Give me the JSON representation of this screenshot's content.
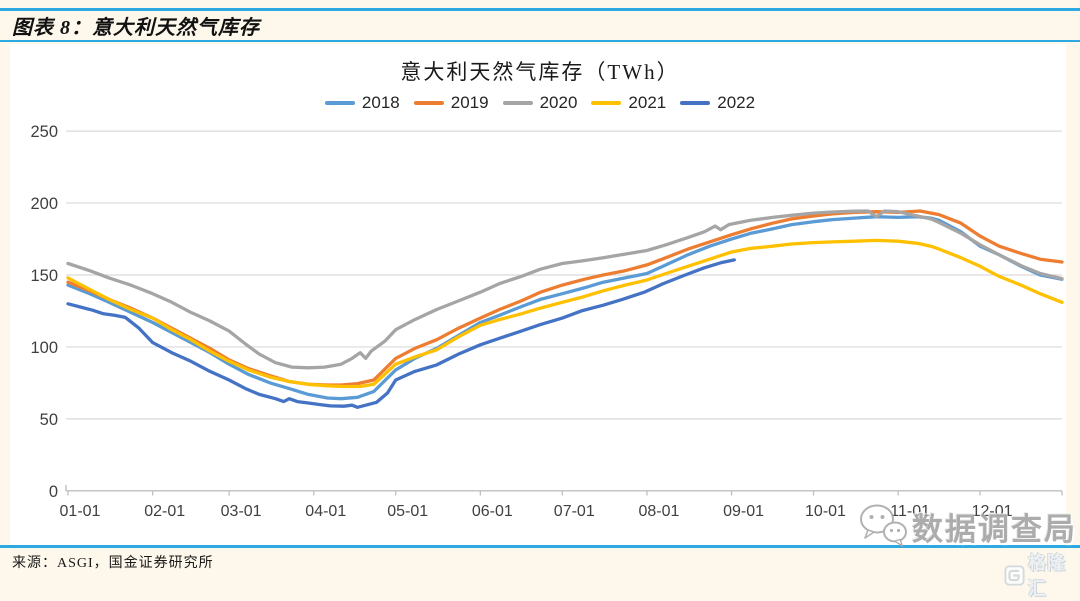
{
  "page": {
    "background": "#FDF8EB",
    "accent_line_color": "#2BA9E0",
    "panel_color": "#FFFFFF"
  },
  "header": {
    "figure_title": "图表 8：意大利天然气库存"
  },
  "chart": {
    "title": "意大利天然气库存（TWh）",
    "legend": [
      {
        "label": "2018",
        "color": "#5B9BD5"
      },
      {
        "label": "2019",
        "color": "#ED7D31"
      },
      {
        "label": "2020",
        "color": "#A5A5A5"
      },
      {
        "label": "2021",
        "color": "#FFC000"
      },
      {
        "label": "2022",
        "color": "#4472C4"
      }
    ],
    "y_axis": {
      "ticks": [
        0,
        50,
        100,
        150,
        200,
        250
      ],
      "color": "#404040"
    },
    "x_axis": {
      "labels": [
        "01-01",
        "02-01",
        "03-01",
        "04-01",
        "05-01",
        "06-01",
        "07-01",
        "08-01",
        "09-01",
        "10-01",
        "11-01",
        "12-01"
      ],
      "label_days": [
        0,
        31,
        59,
        90,
        120,
        151,
        181,
        212,
        243,
        273,
        304,
        334
      ],
      "color": "#404040"
    },
    "grid_color": "#D9D9D9",
    "axis_line_color": "#BFBFBF"
  },
  "chart_data": {
    "type": "line",
    "title": "意大利天然气库存（TWh）",
    "x_unit": "day-of-year (MM-DD axis, 01-01 to 12-31)",
    "ylabel": "TWh",
    "ylim": [
      0,
      250
    ],
    "grid": true,
    "legend_position": "top",
    "series": [
      {
        "name": "2018",
        "color": "#5B9BD5",
        "points": [
          [
            0,
            143
          ],
          [
            8,
            137
          ],
          [
            15,
            131
          ],
          [
            23,
            124
          ],
          [
            31,
            117
          ],
          [
            38,
            110
          ],
          [
            45,
            103
          ],
          [
            52,
            96
          ],
          [
            59,
            88
          ],
          [
            66,
            81
          ],
          [
            74,
            75
          ],
          [
            81,
            71
          ],
          [
            88,
            67
          ],
          [
            95,
            64.5
          ],
          [
            100,
            64
          ],
          [
            106,
            65
          ],
          [
            112,
            69
          ],
          [
            120,
            84
          ],
          [
            127,
            92
          ],
          [
            135,
            99
          ],
          [
            143,
            108
          ],
          [
            151,
            117
          ],
          [
            158,
            122
          ],
          [
            166,
            128
          ],
          [
            173,
            133
          ],
          [
            181,
            137
          ],
          [
            189,
            141
          ],
          [
            196,
            145
          ],
          [
            204,
            148
          ],
          [
            212,
            151
          ],
          [
            219,
            157
          ],
          [
            227,
            164
          ],
          [
            235,
            170
          ],
          [
            243,
            175
          ],
          [
            250,
            179
          ],
          [
            258,
            182
          ],
          [
            265,
            185
          ],
          [
            273,
            187
          ],
          [
            280,
            188.5
          ],
          [
            288,
            189.5
          ],
          [
            296,
            190.5
          ],
          [
            304,
            190
          ],
          [
            311,
            190.5
          ],
          [
            316,
            189.5
          ],
          [
            319,
            188
          ],
          [
            327,
            180
          ],
          [
            334,
            170
          ],
          [
            341,
            164
          ],
          [
            349,
            156
          ],
          [
            356,
            150
          ],
          [
            364,
            147
          ]
        ]
      },
      {
        "name": "2019",
        "color": "#ED7D31",
        "points": [
          [
            0,
            145
          ],
          [
            8,
            139
          ],
          [
            15,
            133
          ],
          [
            23,
            127
          ],
          [
            31,
            120
          ],
          [
            38,
            113
          ],
          [
            45,
            106
          ],
          [
            52,
            99
          ],
          [
            59,
            91
          ],
          [
            66,
            85
          ],
          [
            74,
            80
          ],
          [
            81,
            76
          ],
          [
            88,
            74
          ],
          [
            95,
            73.5
          ],
          [
            100,
            73.5
          ],
          [
            106,
            74.5
          ],
          [
            112,
            77
          ],
          [
            120,
            92
          ],
          [
            127,
            99
          ],
          [
            135,
            105
          ],
          [
            143,
            113
          ],
          [
            151,
            120
          ],
          [
            158,
            126
          ],
          [
            166,
            132
          ],
          [
            173,
            138
          ],
          [
            181,
            143
          ],
          [
            189,
            147
          ],
          [
            196,
            150
          ],
          [
            204,
            153
          ],
          [
            212,
            157
          ],
          [
            219,
            162
          ],
          [
            227,
            168
          ],
          [
            235,
            173
          ],
          [
            243,
            178
          ],
          [
            250,
            182
          ],
          [
            258,
            186
          ],
          [
            265,
            189
          ],
          [
            273,
            191
          ],
          [
            280,
            192.5
          ],
          [
            288,
            193.5
          ],
          [
            296,
            194
          ],
          [
            304,
            193.5
          ],
          [
            312,
            194.5
          ],
          [
            319,
            192
          ],
          [
            327,
            186
          ],
          [
            334,
            177
          ],
          [
            341,
            170
          ],
          [
            349,
            165
          ],
          [
            356,
            161
          ],
          [
            364,
            159
          ]
        ]
      },
      {
        "name": "2020",
        "color": "#A5A5A5",
        "points": [
          [
            0,
            158
          ],
          [
            8,
            153
          ],
          [
            15,
            148
          ],
          [
            23,
            143
          ],
          [
            31,
            137
          ],
          [
            38,
            131
          ],
          [
            45,
            124
          ],
          [
            52,
            118
          ],
          [
            59,
            111
          ],
          [
            65,
            102
          ],
          [
            70,
            95
          ],
          [
            76,
            89
          ],
          [
            82,
            86
          ],
          [
            88,
            85.5
          ],
          [
            94,
            86
          ],
          [
            100,
            88
          ],
          [
            104,
            92
          ],
          [
            107,
            96
          ],
          [
            109,
            92
          ],
          [
            111,
            97
          ],
          [
            116,
            104
          ],
          [
            120,
            112
          ],
          [
            127,
            119
          ],
          [
            135,
            126
          ],
          [
            143,
            132
          ],
          [
            151,
            138
          ],
          [
            158,
            144
          ],
          [
            166,
            149
          ],
          [
            173,
            154
          ],
          [
            181,
            158
          ],
          [
            189,
            160
          ],
          [
            196,
            162
          ],
          [
            204,
            164.5
          ],
          [
            212,
            167
          ],
          [
            219,
            171
          ],
          [
            227,
            176
          ],
          [
            233,
            180
          ],
          [
            237,
            184
          ],
          [
            239,
            181.5
          ],
          [
            242,
            185
          ],
          [
            250,
            188
          ],
          [
            258,
            190
          ],
          [
            265,
            191.5
          ],
          [
            273,
            193
          ],
          [
            280,
            193.8
          ],
          [
            288,
            194.3
          ],
          [
            293,
            194.5
          ],
          [
            296,
            190.5
          ],
          [
            299,
            194.5
          ],
          [
            304,
            194
          ],
          [
            311,
            191
          ],
          [
            316,
            189
          ],
          [
            319,
            186.5
          ],
          [
            327,
            179
          ],
          [
            334,
            171
          ],
          [
            341,
            164
          ],
          [
            349,
            156.5
          ],
          [
            356,
            151
          ],
          [
            364,
            147.5
          ]
        ]
      },
      {
        "name": "2021",
        "color": "#FFC000",
        "points": [
          [
            0,
            148
          ],
          [
            8,
            140
          ],
          [
            15,
            133
          ],
          [
            23,
            126
          ],
          [
            31,
            120
          ],
          [
            38,
            112
          ],
          [
            45,
            105
          ],
          [
            52,
            97
          ],
          [
            59,
            90
          ],
          [
            66,
            84
          ],
          [
            74,
            79
          ],
          [
            81,
            76
          ],
          [
            88,
            74
          ],
          [
            95,
            73
          ],
          [
            101,
            72.5
          ],
          [
            107,
            72.5
          ],
          [
            112,
            74
          ],
          [
            120,
            88
          ],
          [
            127,
            93
          ],
          [
            135,
            98
          ],
          [
            143,
            107
          ],
          [
            151,
            115
          ],
          [
            158,
            119
          ],
          [
            166,
            123
          ],
          [
            173,
            127
          ],
          [
            181,
            131
          ],
          [
            189,
            135
          ],
          [
            196,
            139
          ],
          [
            204,
            143
          ],
          [
            212,
            146.5
          ],
          [
            219,
            151
          ],
          [
            227,
            156
          ],
          [
            235,
            161
          ],
          [
            243,
            166
          ],
          [
            250,
            168.5
          ],
          [
            258,
            170
          ],
          [
            265,
            171.5
          ],
          [
            273,
            172.5
          ],
          [
            280,
            173
          ],
          [
            288,
            173.5
          ],
          [
            296,
            174
          ],
          [
            304,
            173.5
          ],
          [
            311,
            172
          ],
          [
            316,
            170
          ],
          [
            319,
            168
          ],
          [
            327,
            162
          ],
          [
            334,
            156
          ],
          [
            341,
            149
          ],
          [
            349,
            143
          ],
          [
            356,
            137
          ],
          [
            364,
            131
          ]
        ]
      },
      {
        "name": "2022",
        "color": "#4472C4",
        "points": [
          [
            0,
            130
          ],
          [
            5,
            127.5
          ],
          [
            9,
            125.5
          ],
          [
            13,
            123
          ],
          [
            17,
            122
          ],
          [
            21,
            120.5
          ],
          [
            26,
            113
          ],
          [
            31,
            103
          ],
          [
            38,
            96
          ],
          [
            45,
            90
          ],
          [
            52,
            83
          ],
          [
            59,
            77
          ],
          [
            65,
            71
          ],
          [
            70,
            67
          ],
          [
            76,
            64
          ],
          [
            79,
            62
          ],
          [
            81,
            64
          ],
          [
            84,
            62
          ],
          [
            88,
            61
          ],
          [
            92,
            60
          ],
          [
            96,
            59
          ],
          [
            101,
            58.8
          ],
          [
            104,
            59.5
          ],
          [
            106,
            58
          ],
          [
            109,
            59.5
          ],
          [
            113,
            61.5
          ],
          [
            117,
            68
          ],
          [
            120,
            77
          ],
          [
            127,
            83
          ],
          [
            135,
            87.5
          ],
          [
            143,
            95
          ],
          [
            151,
            101.5
          ],
          [
            158,
            106
          ],
          [
            166,
            111
          ],
          [
            173,
            115.5
          ],
          [
            181,
            120
          ],
          [
            188,
            125
          ],
          [
            196,
            129
          ],
          [
            203,
            133
          ],
          [
            211,
            138
          ],
          [
            218,
            144
          ],
          [
            226,
            150
          ],
          [
            233,
            155
          ],
          [
            239,
            158.5
          ],
          [
            244,
            160.5
          ]
        ]
      }
    ]
  },
  "footer": {
    "source": "来源：ASGI，国金证券研究所"
  },
  "watermark": {
    "text": "数据调查局",
    "icon": "wechat-bubbles"
  },
  "logo": {
    "text": "格隆汇",
    "icon": "letter-g"
  }
}
